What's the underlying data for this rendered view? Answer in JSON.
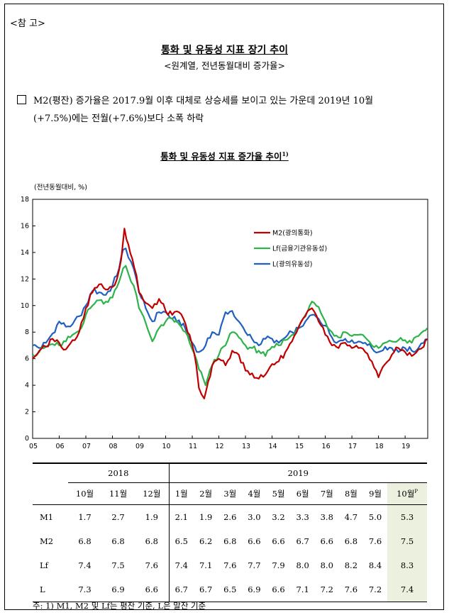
{
  "ref_tag": "<참 고>",
  "title": "통화 및 유동성 지표 장기 추이",
  "subtitle": "<원계열, 전년동월대비 증가율>",
  "bullet": {
    "line1": "M2(평잔) 증가율은 2017.9월 이후 대체로 상승세를 보이고 있는 가운데 2019년 10월",
    "line2": "(+7.5%)에는 전월(+7.6%)보다 소폭 하락"
  },
  "chart_title": "통화 및 유동성 지표 증가율 추이",
  "chart_title_sup": "1)",
  "colors": {
    "m2": "#c00000",
    "lf": "#2db34a",
    "l": "#2060c0",
    "highlight": "#ebf1de"
  },
  "chart_data": {
    "type": "line",
    "ylabel": "(전년동월대비, %)",
    "ylim": [
      0,
      18
    ],
    "yticks": [
      "0",
      "2",
      "4",
      "6",
      "8",
      "10",
      "12",
      "14",
      "16",
      "18"
    ],
    "xlim": [
      2005.0,
      2019.85
    ],
    "xticks": [
      "05",
      "06",
      "07",
      "08",
      "09",
      "10",
      "11",
      "12",
      "13",
      "14",
      "15",
      "16",
      "17",
      "18",
      "19"
    ],
    "legend_position": "upper-right",
    "series": [
      {
        "name": "M2(광의통화)",
        "key": "m2",
        "x": [
          2005.0,
          2005.25,
          2005.5,
          2005.75,
          2006.0,
          2006.25,
          2006.5,
          2006.75,
          2007.0,
          2007.25,
          2007.5,
          2007.75,
          2008.0,
          2008.17,
          2008.33,
          2008.45,
          2008.6,
          2008.75,
          2008.9,
          2009.0,
          2009.25,
          2009.5,
          2009.75,
          2010.0,
          2010.25,
          2010.5,
          2010.75,
          2010.9,
          2011.0,
          2011.15,
          2011.25,
          2011.35,
          2011.45,
          2011.6,
          2011.75,
          2012.0,
          2012.25,
          2012.5,
          2012.75,
          2013.0,
          2013.25,
          2013.5,
          2013.75,
          2014.0,
          2014.25,
          2014.5,
          2014.75,
          2015.0,
          2015.25,
          2015.5,
          2015.75,
          2016.0,
          2016.25,
          2016.5,
          2016.75,
          2017.0,
          2017.25,
          2017.5,
          2017.75,
          2018.0,
          2018.25,
          2018.5,
          2018.75,
          2019.0,
          2019.25,
          2019.5,
          2019.7,
          2019.83
        ],
        "values": [
          6.0,
          6.6,
          6.9,
          7.5,
          7.2,
          6.7,
          7.4,
          8.0,
          9.8,
          11.0,
          11.6,
          11.2,
          11.4,
          12.0,
          13.5,
          15.8,
          14.6,
          13.5,
          12.3,
          11.0,
          10.2,
          9.8,
          10.5,
          9.6,
          9.3,
          9.5,
          8.6,
          7.8,
          7.0,
          5.5,
          3.8,
          3.3,
          3.0,
          4.3,
          5.5,
          6.0,
          5.5,
          6.6,
          6.3,
          5.1,
          4.9,
          4.5,
          4.8,
          5.6,
          5.8,
          6.5,
          7.3,
          8.4,
          9.2,
          9.8,
          8.8,
          7.8,
          7.0,
          6.8,
          7.2,
          6.8,
          6.8,
          6.5,
          5.8,
          4.6,
          5.6,
          6.3,
          6.8,
          6.5,
          6.2,
          6.7,
          6.9,
          7.5
        ]
      },
      {
        "name": "Lf(금융기관유동성)",
        "key": "lf",
        "x": [
          2005.0,
          2005.25,
          2005.5,
          2005.75,
          2006.0,
          2006.25,
          2006.5,
          2006.75,
          2007.0,
          2007.25,
          2007.5,
          2007.75,
          2008.0,
          2008.25,
          2008.4,
          2008.5,
          2008.7,
          2008.9,
          2009.0,
          2009.25,
          2009.5,
          2009.75,
          2010.0,
          2010.25,
          2010.5,
          2010.75,
          2010.9,
          2011.0,
          2011.25,
          2011.5,
          2011.75,
          2012.0,
          2012.25,
          2012.5,
          2012.75,
          2013.0,
          2013.25,
          2013.5,
          2013.75,
          2014.0,
          2014.25,
          2014.5,
          2014.75,
          2015.0,
          2015.25,
          2015.5,
          2015.75,
          2016.0,
          2016.25,
          2016.5,
          2016.75,
          2017.0,
          2017.25,
          2017.5,
          2017.75,
          2018.0,
          2018.25,
          2018.5,
          2018.75,
          2019.0,
          2019.25,
          2019.5,
          2019.7,
          2019.83
        ],
        "values": [
          6.3,
          6.5,
          6.9,
          7.1,
          7.0,
          7.3,
          7.8,
          8.1,
          9.3,
          10.0,
          10.4,
          10.3,
          10.6,
          11.8,
          12.8,
          13.0,
          11.8,
          10.8,
          9.8,
          8.7,
          7.3,
          8.3,
          8.8,
          9.0,
          8.6,
          8.0,
          7.2,
          6.7,
          5.2,
          4.0,
          5.5,
          6.3,
          7.0,
          8.0,
          7.6,
          7.0,
          6.8,
          6.6,
          6.2,
          6.9,
          7.0,
          7.4,
          7.8,
          8.4,
          9.3,
          10.3,
          9.9,
          8.8,
          8.0,
          7.6,
          8.0,
          7.7,
          7.8,
          7.6,
          7.0,
          6.8,
          7.2,
          7.3,
          7.4,
          7.4,
          7.2,
          7.7,
          8.1,
          8.3
        ]
      },
      {
        "name": "L(광의유동성)",
        "key": "l",
        "x": [
          2005.0,
          2005.25,
          2005.5,
          2005.75,
          2006.0,
          2006.25,
          2006.5,
          2006.75,
          2007.0,
          2007.25,
          2007.5,
          2007.75,
          2008.0,
          2008.25,
          2008.4,
          2008.5,
          2008.7,
          2008.9,
          2009.0,
          2009.25,
          2009.5,
          2009.75,
          2010.0,
          2010.25,
          2010.5,
          2010.75,
          2010.9,
          2011.0,
          2011.25,
          2011.5,
          2011.75,
          2012.0,
          2012.25,
          2012.5,
          2012.75,
          2013.0,
          2013.25,
          2013.5,
          2013.75,
          2014.0,
          2014.25,
          2014.5,
          2014.75,
          2015.0,
          2015.25,
          2015.5,
          2015.75,
          2016.0,
          2016.25,
          2016.5,
          2016.75,
          2017.0,
          2017.25,
          2017.5,
          2017.75,
          2018.0,
          2018.25,
          2018.5,
          2018.75,
          2019.0,
          2019.25,
          2019.5,
          2019.7,
          2019.83
        ],
        "values": [
          7.0,
          6.8,
          7.2,
          7.9,
          8.8,
          8.4,
          8.6,
          9.2,
          10.0,
          11.1,
          11.0,
          10.8,
          11.5,
          12.8,
          14.2,
          14.3,
          13.3,
          12.0,
          11.0,
          9.8,
          8.8,
          9.5,
          9.5,
          9.0,
          8.9,
          8.2,
          7.5,
          7.2,
          6.5,
          7.0,
          8.0,
          7.8,
          9.5,
          9.6,
          8.8,
          8.0,
          7.5,
          7.0,
          7.5,
          7.5,
          7.2,
          7.6,
          8.0,
          8.3,
          8.8,
          9.3,
          9.0,
          8.5,
          7.6,
          7.3,
          7.5,
          7.4,
          7.3,
          7.2,
          6.8,
          6.5,
          6.9,
          6.8,
          6.5,
          6.8,
          6.6,
          6.8,
          7.2,
          7.4
        ]
      }
    ]
  },
  "table": {
    "year_headers": [
      "2018",
      "2019"
    ],
    "months": [
      "10월",
      "11월",
      "12월",
      "1월",
      "2월",
      "3월",
      "4월",
      "5월",
      "6월",
      "7월",
      "8월",
      "9월",
      "10월"
    ],
    "last_month_sup": "P",
    "rows": [
      {
        "label": "M1",
        "values": [
          "1.7",
          "2.7",
          "1.9",
          "2.1",
          "1.9",
          "2.6",
          "3.0",
          "3.2",
          "3.3",
          "3.8",
          "4.7",
          "5.0",
          "5.3"
        ]
      },
      {
        "label": "M2",
        "values": [
          "6.8",
          "6.8",
          "6.8",
          "6.5",
          "6.2",
          "6.8",
          "6.6",
          "6.6",
          "6.7",
          "6.6",
          "6.8",
          "7.6",
          "7.5"
        ]
      },
      {
        "label": "Lf",
        "values": [
          "7.4",
          "7.5",
          "7.6",
          "7.4",
          "7.1",
          "7.6",
          "7.7",
          "7.9",
          "8.0",
          "8.0",
          "8.2",
          "8.4",
          "8.3"
        ]
      },
      {
        "label": "L",
        "values": [
          "7.3",
          "6.9",
          "6.6",
          "6.7",
          "6.7",
          "6.5",
          "6.9",
          "6.6",
          "7.1",
          "7.2",
          "7.6",
          "7.2",
          "7.4"
        ]
      }
    ]
  },
  "footnote": "주: 1) M1, M2 및 Lf는 평잔 기준, L은 말잔 기준"
}
